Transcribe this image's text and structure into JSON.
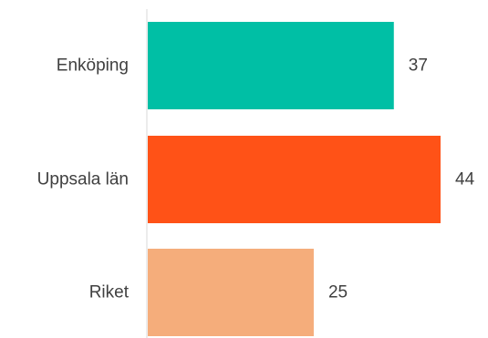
{
  "chart_data": {
    "type": "bar",
    "orientation": "horizontal",
    "categories": [
      "Enköping",
      "Uppsala län",
      "Riket"
    ],
    "values": [
      37,
      44,
      25
    ],
    "value_labels": [
      "37",
      "44",
      "25"
    ],
    "colors": [
      "#00bfa5",
      "#ff5217",
      "#f5ad7b"
    ],
    "axis_color": "#d9d9d9",
    "grid": false,
    "legend": "none",
    "xlim": [
      0,
      45
    ],
    "title": "",
    "xlabel": "",
    "ylabel": ""
  }
}
